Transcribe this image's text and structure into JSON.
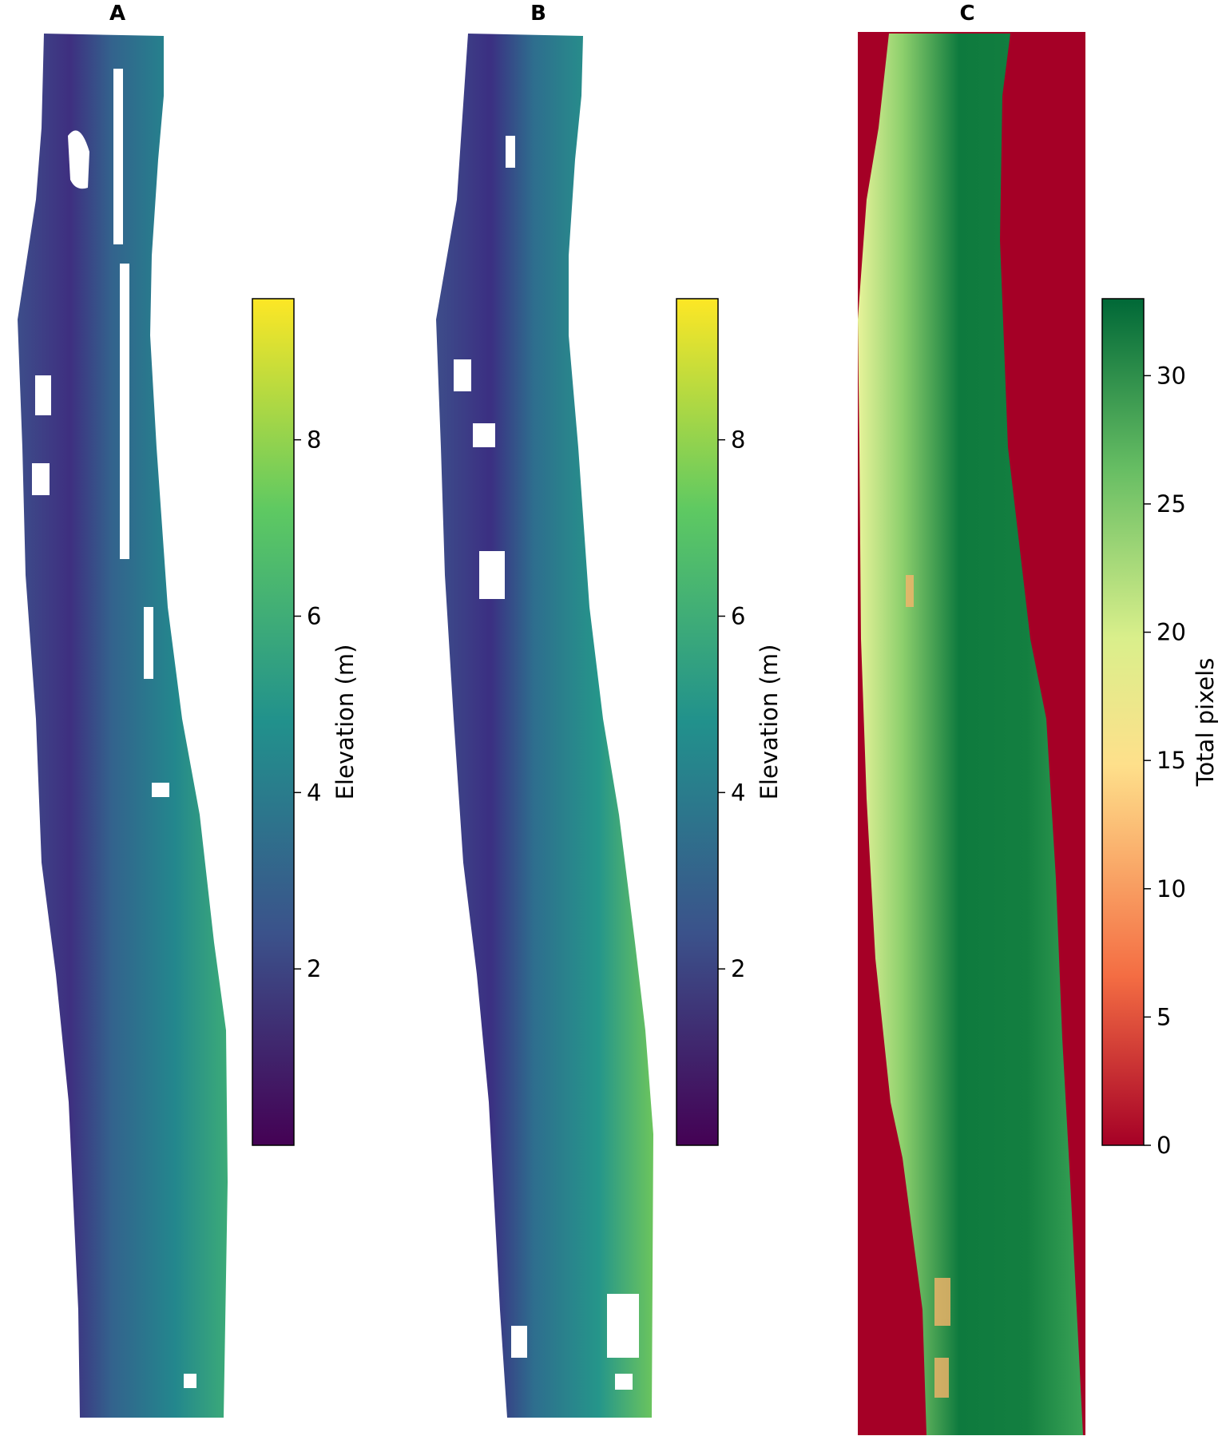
{
  "chart_data": [
    {
      "type": "heatmap",
      "panel_label": "A",
      "colormap": "viridis",
      "colorbar": {
        "label": "Elevation (m)",
        "range": [
          0,
          9.6
        ],
        "ticks": [
          2,
          4,
          6,
          8
        ],
        "tick_labels": [
          "2",
          "4",
          "6",
          "8"
        ]
      },
      "colors": [
        "#440154",
        "#3b528b",
        "#21918c",
        "#5ec962",
        "#fde725"
      ]
    },
    {
      "type": "heatmap",
      "panel_label": "B",
      "colormap": "viridis",
      "colorbar": {
        "label": "Elevation (m)",
        "range": [
          0,
          9.6
        ],
        "ticks": [
          2,
          4,
          6,
          8
        ],
        "tick_labels": [
          "2",
          "4",
          "6",
          "8"
        ]
      },
      "colors": [
        "#440154",
        "#3b528b",
        "#21918c",
        "#5ec962",
        "#fde725"
      ]
    },
    {
      "type": "heatmap",
      "panel_label": "C",
      "colormap": "RdYlGn",
      "colorbar": {
        "label": "Total pixels",
        "range": [
          0,
          33
        ],
        "ticks": [
          0,
          5,
          10,
          15,
          20,
          25,
          30
        ],
        "tick_labels": [
          "0",
          "5",
          "10",
          "15",
          "20",
          "25",
          "30"
        ]
      },
      "colors": [
        "#a50026",
        "#f46d43",
        "#fee08b",
        "#d9ef8b",
        "#66bd63",
        "#006837"
      ]
    }
  ]
}
